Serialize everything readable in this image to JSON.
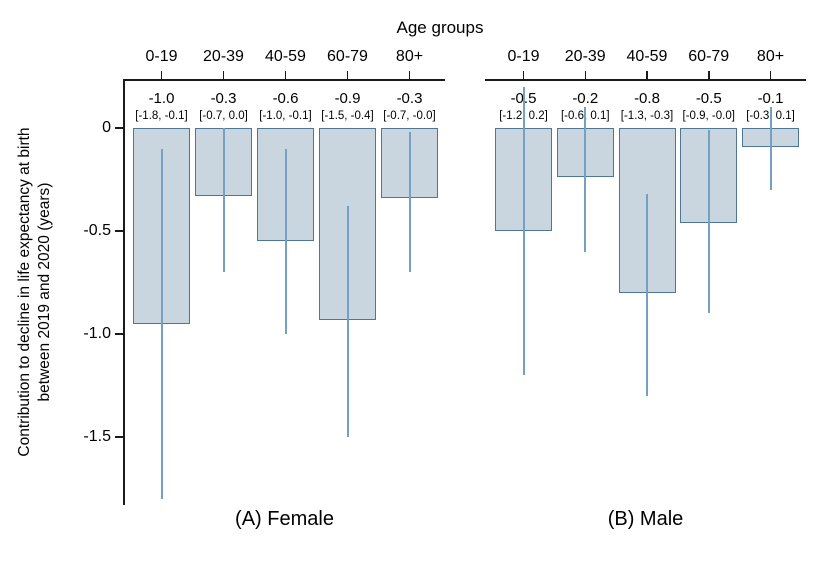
{
  "chart_data": {
    "type": "bar",
    "title": "Age groups",
    "ylabel_lines": [
      "Contribution to decline in life expectancy at birth",
      "between 2019 and 2020 (years)"
    ],
    "ylim": [
      0.25,
      -1.85
    ],
    "grid": false,
    "legend": "none",
    "categories": [
      "0-19",
      "20-39",
      "40-59",
      "60-79",
      "80+"
    ],
    "y_ticks": [
      {
        "label": "0",
        "value": 0
      },
      {
        "label": "-0.5",
        "value": -0.5
      },
      {
        "label": "-1.0",
        "value": -1.0
      },
      {
        "label": "-1.5",
        "value": -1.5
      }
    ],
    "panels": [
      {
        "caption": "(A) Female",
        "series_name": "Female",
        "bars": [
          {
            "age": "0-19",
            "estimate_label": "-1.0",
            "ci_label": "[-1.8, -0.1]",
            "value": -0.95,
            "ci_low": -1.8,
            "ci_high": -0.1
          },
          {
            "age": "20-39",
            "estimate_label": "-0.3",
            "ci_label": "[-0.7, 0.0]",
            "value": -0.33,
            "ci_low": -0.7,
            "ci_high": 0.0
          },
          {
            "age": "40-59",
            "estimate_label": "-0.6",
            "ci_label": "[-1.0, -0.1]",
            "value": -0.55,
            "ci_low": -1.0,
            "ci_high": -0.1
          },
          {
            "age": "60-79",
            "estimate_label": "-0.9",
            "ci_label": "[-1.5, -0.4]",
            "value": -0.93,
            "ci_low": -1.5,
            "ci_high": -0.38
          },
          {
            "age": "80+",
            "estimate_label": "-0.3",
            "ci_label": "[-0.7, -0.0]",
            "value": -0.34,
            "ci_low": -0.7,
            "ci_high": -0.02
          }
        ]
      },
      {
        "caption": "(B) Male",
        "series_name": "Male",
        "bars": [
          {
            "age": "0-19",
            "estimate_label": "-0.5",
            "ci_label": "[-1.2, 0.2]",
            "value": -0.5,
            "ci_low": -1.2,
            "ci_high": 0.2
          },
          {
            "age": "20-39",
            "estimate_label": "-0.2",
            "ci_label": "[-0.6, 0.1]",
            "value": -0.24,
            "ci_low": -0.6,
            "ci_high": 0.1
          },
          {
            "age": "40-59",
            "estimate_label": "-0.8",
            "ci_label": "[-1.3, -0.3]",
            "value": -0.8,
            "ci_low": -1.3,
            "ci_high": -0.32
          },
          {
            "age": "60-79",
            "estimate_label": "-0.5",
            "ci_label": "[-0.9, -0.0]",
            "value": -0.46,
            "ci_low": -0.9,
            "ci_high": -0.01
          },
          {
            "age": "80+",
            "estimate_label": "-0.1",
            "ci_label": "[-0.3, 0.1]",
            "value": -0.09,
            "ci_low": -0.3,
            "ci_high": 0.1
          }
        ]
      }
    ],
    "colors": {
      "bar_fill": "#c9d6e0",
      "bar_border": "#4d7795",
      "whisker": "#74a1c2",
      "axis": "#1a1a1a",
      "text": "#000000"
    }
  }
}
